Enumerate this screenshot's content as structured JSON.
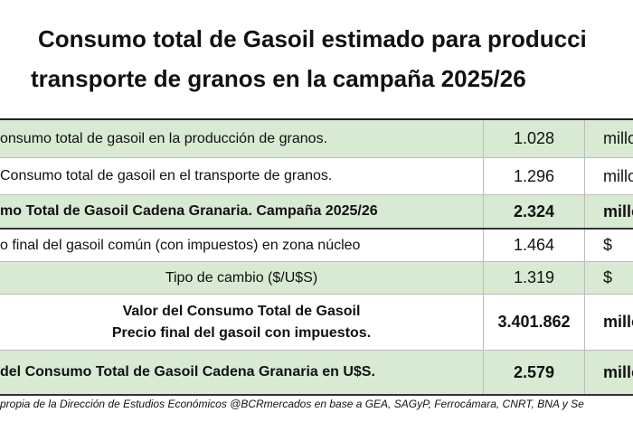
{
  "title": {
    "line1": "Consumo total de Gasoil estimado para producci",
    "line2": "transporte de granos en la campaña 2025/26"
  },
  "rows": [
    {
      "label": "onsumo total de gasoil  en la producción de granos.",
      "value": "1.028",
      "unit": "millo"
    },
    {
      "label": "Consumo total de gasoil  en el transporte de granos.",
      "value": "1.296",
      "unit": "millo"
    },
    {
      "label": "mo Total de Gasoil Cadena Granaria. Campaña 2025/26",
      "value": "2.324",
      "unit": "millo"
    },
    {
      "label": "o final del gasoil común (con impuestos) en zona núcleo",
      "value": "1.464",
      "unit": "$"
    },
    {
      "label": "Tipo de cambio ($/U$S)",
      "value": "1.319",
      "unit": "$"
    },
    {
      "label_line1": "Valor del Consumo Total de Gasoil",
      "label_line2": "Precio final del gasoil con impuestos.",
      "value": "3.401.862",
      "unit": "millo"
    },
    {
      "label": "del Consumo Total de Gasoil Cadena Granaria en U$S.",
      "value": "2.579",
      "unit": "millo"
    }
  ],
  "footer": "propia de la Dirección de Estudios Económicos @BCRmercados  en base a GEA, SAGyP, Ferrocámara, CNRT, BNA y Se"
}
